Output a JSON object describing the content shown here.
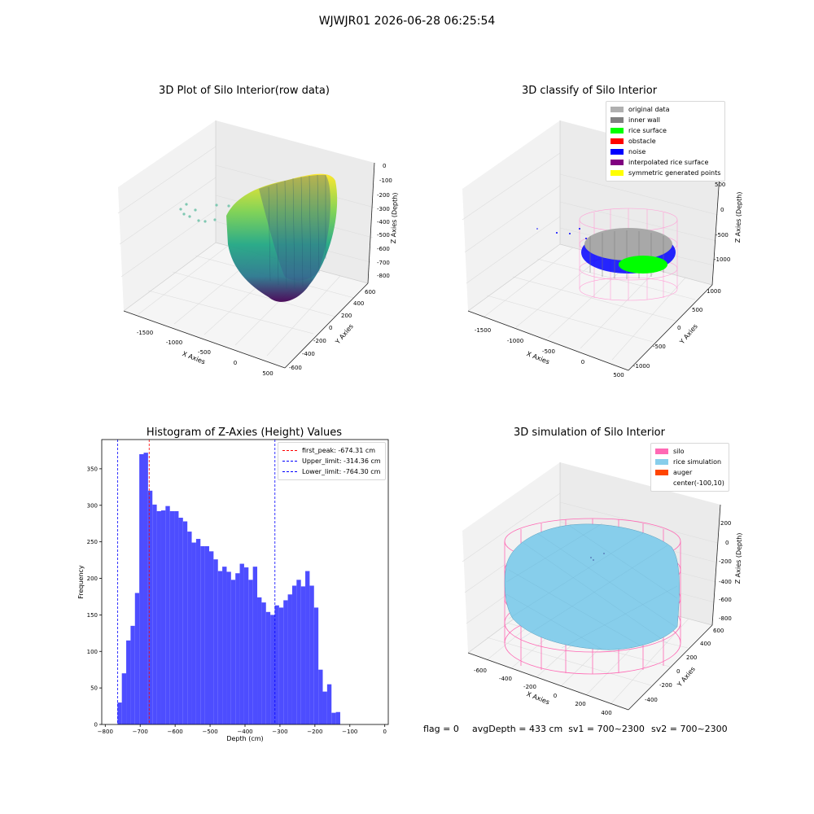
{
  "suptitle": "WJWJR01 2026-06-28 06:25:54",
  "panels": {
    "raw": {
      "title": "3D Plot of Silo Interior(row data)",
      "xlabel": "X Axies",
      "ylabel": "Y Axies",
      "zlabel": "Z Axies (Depth)",
      "xticks": [
        "-1500",
        "-1000",
        "-500",
        "0",
        "500"
      ],
      "yticks": [
        "600",
        "400",
        "200",
        "0",
        "-200",
        "-400",
        "-600"
      ],
      "zticks": [
        "0",
        "-100",
        "-200",
        "-300",
        "-400",
        "-500",
        "-600",
        "-700",
        "-800"
      ],
      "colormap": "viridis"
    },
    "classify": {
      "title": "3D classify of Silo Interior",
      "xlabel": "X Axies",
      "ylabel": "Y Axies",
      "zlabel": "Z Axies (Depth)",
      "xticks": [
        "-1500",
        "-1000",
        "-500",
        "0",
        "500"
      ],
      "yticks": [
        "1000",
        "500",
        "0",
        "-500",
        "-1000"
      ],
      "zticks": [
        "500",
        "0",
        "-500",
        "-1000"
      ],
      "legend": [
        {
          "label": "original data",
          "color": "#b0b0b0"
        },
        {
          "label": "inner wall",
          "color": "#808080"
        },
        {
          "label": "rice surface",
          "color": "#00ff00"
        },
        {
          "label": "obstacle",
          "color": "#ff0000"
        },
        {
          "label": "noise",
          "color": "#0000ff"
        },
        {
          "label": "interpolated rice surface",
          "color": "#800080"
        },
        {
          "label": "symmetric generated points",
          "color": "#ffff00"
        }
      ]
    },
    "simulation": {
      "title": "3D simulation of Silo Interior",
      "xlabel": "X Axies",
      "ylabel": "Y Axies",
      "zlabel": "Z Axies (Depth)",
      "xticks": [
        "-600",
        "-400",
        "-200",
        "0",
        "200",
        "400"
      ],
      "yticks": [
        "600",
        "400",
        "200",
        "0",
        "-200",
        "-400"
      ],
      "zticks": [
        "200",
        "0",
        "-200",
        "-400",
        "-600",
        "-800"
      ],
      "legend": [
        {
          "label": "silo",
          "color": "#ff69b4"
        },
        {
          "label": "rice simulation",
          "color": "#87ceeb"
        },
        {
          "label": "auger",
          "color": "#ff4500"
        },
        {
          "label": "center(-100,10)",
          "color": ""
        }
      ]
    }
  },
  "chart_data": {
    "type": "bar",
    "title": "Histogram of Z-Axies (Height) Values",
    "xlabel": "Depth (cm)",
    "ylabel": "Frequency",
    "xlim": [
      -810,
      10
    ],
    "ylim": [
      0,
      390
    ],
    "xticks": [
      -800,
      -700,
      -600,
      -500,
      -400,
      -300,
      -200,
      -100,
      0
    ],
    "yticks": [
      0,
      50,
      100,
      150,
      200,
      250,
      300,
      350
    ],
    "bar_color": "#4d4dff",
    "bin_start": -765,
    "bin_width": 12.5,
    "values": [
      30,
      70,
      115,
      135,
      180,
      370,
      372,
      320,
      301,
      292,
      293,
      299,
      292,
      292,
      283,
      278,
      264,
      249,
      254,
      244,
      244,
      237,
      226,
      210,
      216,
      209,
      198,
      207,
      220,
      215,
      198,
      216,
      174,
      167,
      154,
      150,
      163,
      160,
      170,
      178,
      190,
      198,
      189,
      210,
      190,
      160,
      75,
      45,
      55,
      16,
      17
    ],
    "lines": [
      {
        "label": "first_peak: -674.31 cm",
        "x": -674.31,
        "color": "#ff0000"
      },
      {
        "label": "Upper_limit: -314.36 cm",
        "x": -314.36,
        "color": "#0000ff"
      },
      {
        "label": "Lower_limit: -764.30 cm",
        "x": -764.3,
        "color": "#0000ff"
      }
    ],
    "legend_position": "top-right"
  },
  "footer": {
    "flag": "flag = 0",
    "avg": "avgDepth = 433 cm  sv1 = 700~2300",
    "sv2": "sv2 = 700~2300"
  }
}
